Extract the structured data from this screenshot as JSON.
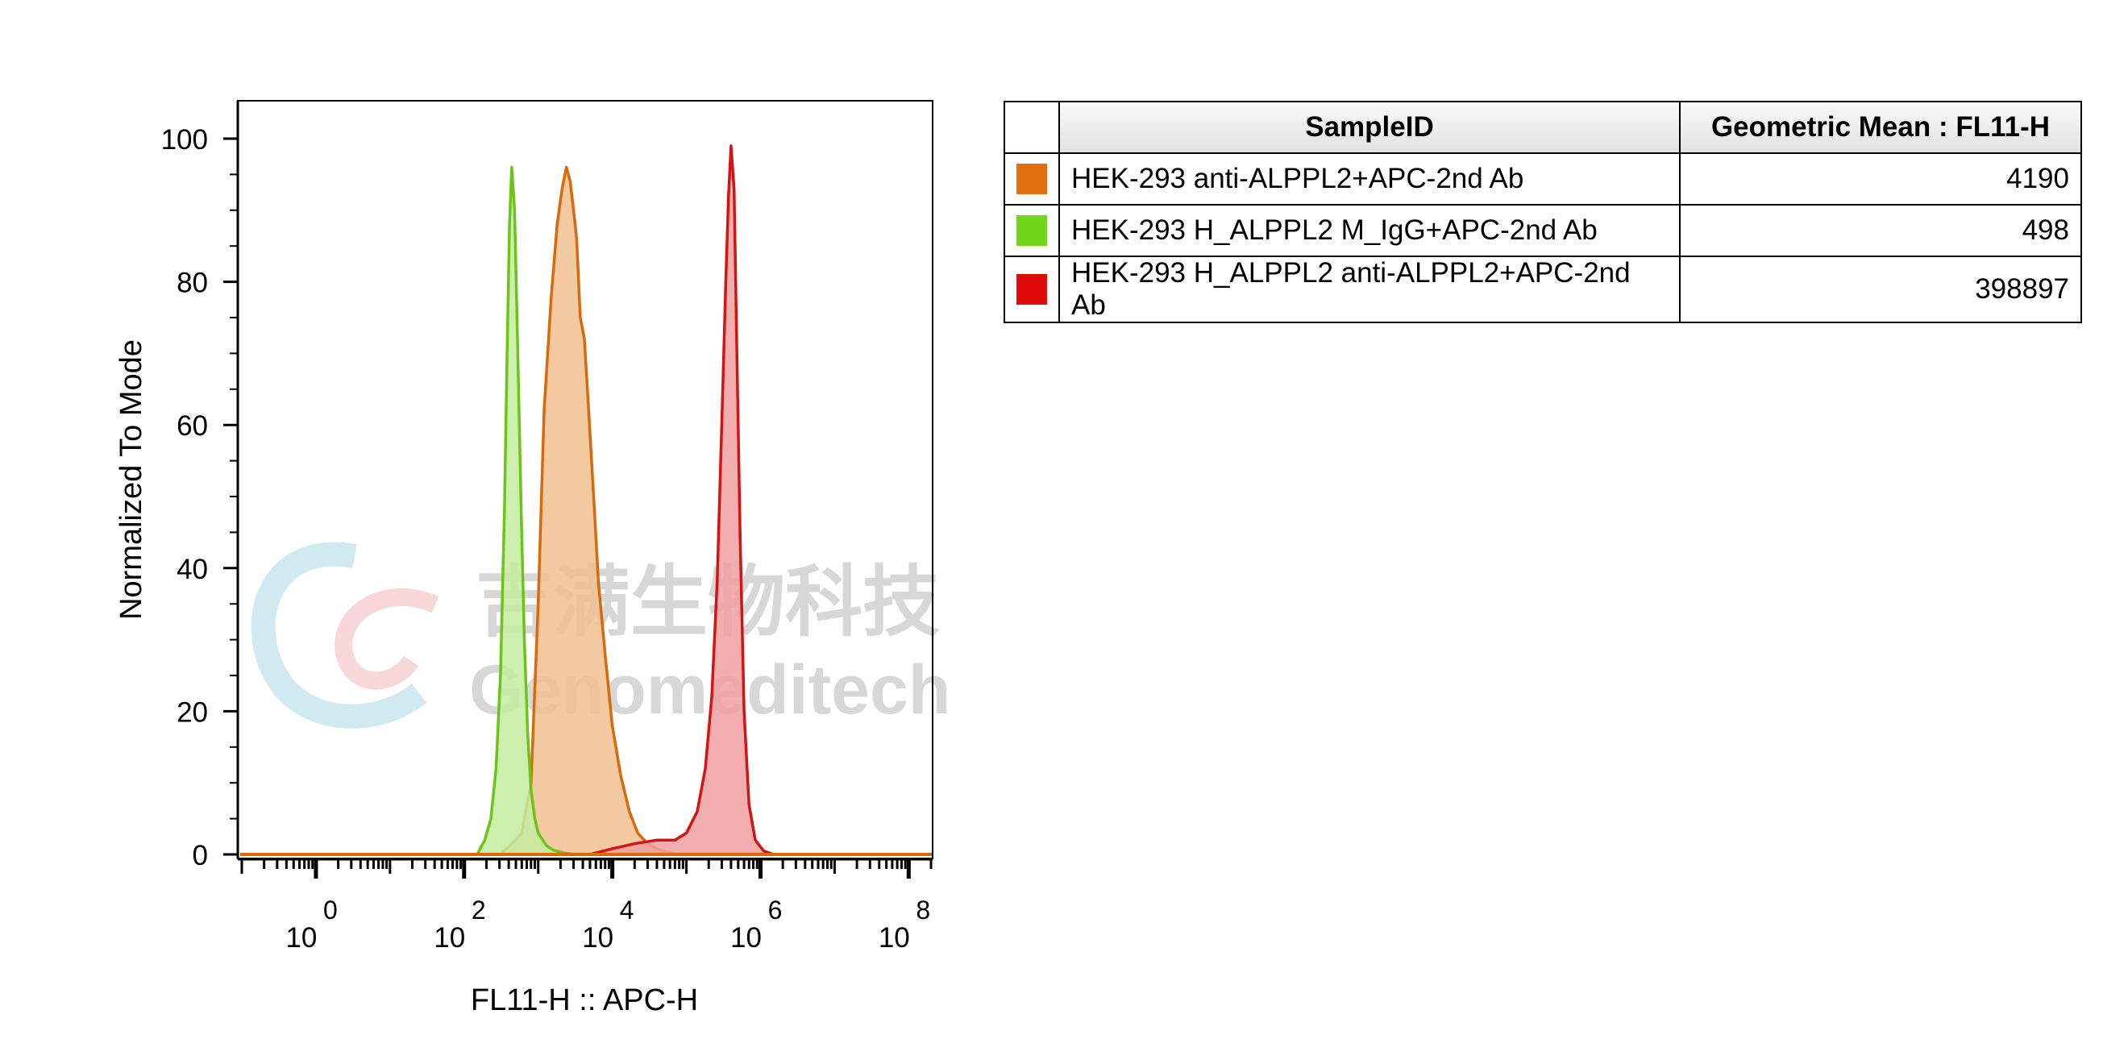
{
  "chart_data": {
    "type": "area",
    "ylabel": "Normalized To Mode",
    "xlabel": "FL11-H :: APC-H",
    "x_scale": "log10",
    "xlim": [
      0.1,
      200000000
    ],
    "ylim": [
      0,
      100
    ],
    "y_ticks": [
      0,
      20,
      40,
      60,
      80,
      100
    ],
    "x_ticks": [
      {
        "value": 1,
        "base": "10",
        "exp": "0"
      },
      {
        "value": 100,
        "base": "10",
        "exp": "2"
      },
      {
        "value": 10000,
        "base": "10",
        "exp": "4"
      },
      {
        "value": 1000000,
        "base": "10",
        "exp": "6"
      },
      {
        "value": 100000000,
        "base": "10",
        "exp": "8"
      }
    ],
    "watermark": {
      "cn": "吉满生物科技",
      "en": "Genomeditech"
    },
    "table": {
      "col_sample": "SampleID",
      "col_value": "Geometric Mean : FL11-H"
    },
    "series": [
      {
        "name": "HEK-293 anti-ALPPL2+APC-2nd Ab",
        "gmean": "4190",
        "stroke": "#d96a0b",
        "fill": "#f0c090",
        "swatch": "#e07010",
        "x": [
          300,
          400,
          600,
          800,
          1000,
          1200,
          1500,
          1800,
          2100,
          2400,
          2700,
          3000,
          3300,
          3700,
          4200,
          4800,
          5600,
          6500,
          8000,
          10000,
          13000,
          17000,
          22000,
          30000,
          40000,
          55000,
          80000
        ],
        "y": [
          0,
          1,
          3,
          10,
          35,
          62,
          78,
          88,
          93,
          96,
          94,
          90,
          86,
          75,
          72,
          62,
          50,
          38,
          28,
          18,
          11,
          6,
          3,
          1.5,
          0.8,
          0.3,
          0
        ]
      },
      {
        "name": "HEK-293 H_ALPPL2 M_IgG+APC-2nd Ab",
        "gmean": "498",
        "stroke": "#6cc41a",
        "fill": "#c4eca0",
        "swatch": "#70d818",
        "x": [
          150,
          190,
          230,
          270,
          310,
          350,
          380,
          410,
          440,
          480,
          530,
          590,
          650,
          720,
          800,
          900,
          1000,
          1150,
          1300,
          1600,
          2200,
          3200
        ],
        "y": [
          0,
          2,
          5,
          12,
          25,
          48,
          70,
          88,
          96,
          90,
          70,
          48,
          30,
          17,
          9,
          5,
          3,
          2,
          1.2,
          0.6,
          0.2,
          0
        ]
      },
      {
        "name": "HEK-293 H_ALPPL2 anti-ALPPL2+APC-2nd Ab",
        "gmean": "398897",
        "stroke": "#d41414",
        "fill": "#f0a0a0",
        "swatch": "#e00c0c",
        "x": [
          5000,
          10000,
          20000,
          40000,
          70000,
          100000,
          140000,
          180000,
          220000,
          260000,
          300000,
          340000,
          370000,
          400000,
          440000,
          480000,
          530000,
          600000,
          700000,
          850000,
          1100000,
          1500000
        ],
        "y": [
          0,
          0.8,
          1.5,
          2,
          2,
          3,
          6,
          12,
          22,
          38,
          60,
          80,
          92,
          99,
          93,
          70,
          45,
          20,
          7,
          2,
          0.5,
          0
        ]
      }
    ]
  }
}
